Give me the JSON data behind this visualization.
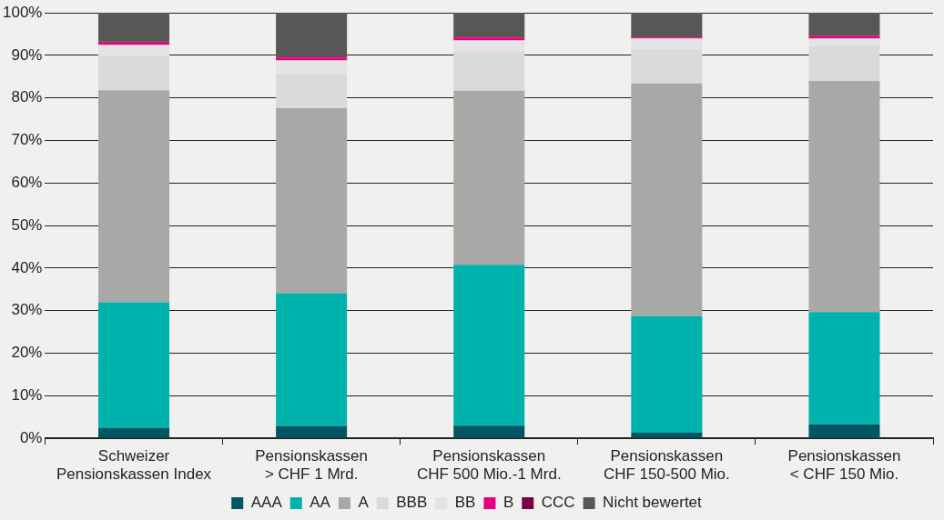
{
  "chart_data": {
    "type": "bar",
    "stacked": true,
    "categories": [
      "Schweizer\nPensionskassen Index",
      "Pensionskassen\n> CHF 1 Mrd.",
      "Pensionskassen\nCHF 500 Mio.-1 Mrd.",
      "Pensionskassen\nCHF 150-500 Mio.",
      "Pensionskassen\n< CHF 150 Mio."
    ],
    "series": [
      {
        "name": "AAA",
        "color": "#005763",
        "values": [
          2.5,
          2.9,
          3.0,
          1.3,
          3.3
        ]
      },
      {
        "name": "AA",
        "color": "#00b2ac",
        "values": [
          29.5,
          31.2,
          37.8,
          27.4,
          26.4
        ]
      },
      {
        "name": "A",
        "color": "#a8a8a6",
        "values": [
          49.8,
          43.5,
          40.9,
          54.7,
          54.3
        ]
      },
      {
        "name": "BBB",
        "color": "#dadada",
        "values": [
          8.1,
          8.0,
          9.3,
          8.0,
          8.2
        ]
      },
      {
        "name": "BB",
        "color": "#e3e4e6",
        "values": [
          2.5,
          3.2,
          2.5,
          2.5,
          1.7
        ]
      },
      {
        "name": "B",
        "color": "#e5007d",
        "values": [
          0.6,
          0.7,
          0.7,
          0.3,
          0.6
        ]
      },
      {
        "name": "CCC",
        "color": "#7a0046",
        "values": [
          0.2,
          0.2,
          0.2,
          0.2,
          0.1
        ]
      },
      {
        "name": "Nicht bewertet",
        "color": "#575755",
        "values": [
          6.8,
          10.3,
          5.6,
          5.6,
          5.4
        ]
      }
    ],
    "ylim": [
      0,
      100
    ],
    "yticks": [
      {
        "value": 0,
        "label": "0%"
      },
      {
        "value": 10,
        "label": "10%"
      },
      {
        "value": 20,
        "label": "20%"
      },
      {
        "value": 30,
        "label": "30%"
      },
      {
        "value": 40,
        "label": "40%"
      },
      {
        "value": 50,
        "label": "50%"
      },
      {
        "value": 60,
        "label": "60%"
      },
      {
        "value": 70,
        "label": "70%"
      },
      {
        "value": 80,
        "label": "80%"
      },
      {
        "value": 90,
        "label": "90%"
      },
      {
        "value": 100,
        "label": "100%"
      }
    ],
    "grid": "y",
    "legend": "bottom"
  }
}
